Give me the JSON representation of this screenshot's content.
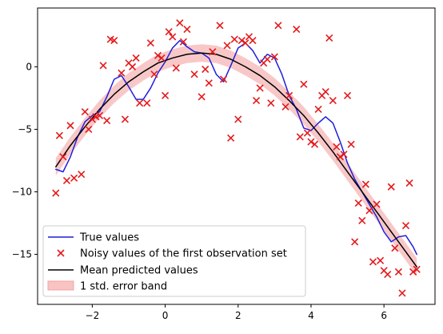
{
  "chart_data": {
    "type": "line",
    "title": "",
    "xlabel": "",
    "ylabel": "",
    "xlim": [
      -3.5,
      7.4
    ],
    "ylim": [
      -19,
      4.7
    ],
    "grid": false,
    "legend_position": "lower-left",
    "x_ticks": [
      -2,
      0,
      2,
      4,
      6
    ],
    "x_tick_labels": [
      "−2",
      "0",
      "2",
      "4",
      "6"
    ],
    "y_ticks": [
      0,
      -5,
      -10,
      -15
    ],
    "y_tick_labels": [
      "0",
      "−5",
      "−10",
      "−15"
    ],
    "legend": [
      {
        "label": "True values",
        "kind": "line",
        "color": "#1f1fdd"
      },
      {
        "label": "Noisy values of the first observation set",
        "kind": "marker",
        "color": "#e41a1c"
      },
      {
        "label": "Mean predicted values",
        "kind": "line",
        "color": "#000000"
      },
      {
        "label": "1 std. error band",
        "kind": "patch",
        "color": "#f4a3a3"
      }
    ],
    "series": [
      {
        "name": "True values",
        "type": "line",
        "color": "#1f1fdd",
        "x": [
          -3.0,
          -2.8,
          -2.6,
          -2.4,
          -2.2,
          -2.0,
          -1.8,
          -1.6,
          -1.4,
          -1.2,
          -1.0,
          -0.8,
          -0.6,
          -0.4,
          -0.2,
          0.0,
          0.2,
          0.4,
          0.6,
          0.8,
          1.0,
          1.2,
          1.4,
          1.6,
          1.8,
          2.0,
          2.2,
          2.4,
          2.6,
          2.8,
          3.0,
          3.2,
          3.4,
          3.6,
          3.8,
          4.0,
          4.2,
          4.4,
          4.6,
          4.8,
          5.0,
          5.2,
          5.4,
          5.6,
          5.8,
          6.0,
          6.2,
          6.4,
          6.6,
          6.8,
          6.9
        ],
        "y": [
          -8.2,
          -8.4,
          -7.2,
          -5.6,
          -4.4,
          -3.9,
          -3.6,
          -2.4,
          -1.0,
          -0.7,
          -1.6,
          -2.6,
          -2.6,
          -1.7,
          -0.5,
          0.4,
          1.5,
          2.1,
          1.6,
          1.2,
          1.1,
          0.7,
          -0.6,
          -1.2,
          0.1,
          1.5,
          1.9,
          1.3,
          0.3,
          1.0,
          0.7,
          -0.6,
          -2.3,
          -3.4,
          -4.9,
          -5.1,
          -4.5,
          -4.0,
          -4.5,
          -6.0,
          -7.7,
          -9.0,
          -10.0,
          -11.0,
          -12.0,
          -13.2,
          -14.0,
          -13.6,
          -13.5,
          -14.4,
          -15.0
        ]
      },
      {
        "name": "Mean predicted values",
        "type": "line",
        "color": "#000000",
        "x": [
          -3.0,
          -2.6,
          -2.2,
          -1.8,
          -1.4,
          -1.0,
          -0.6,
          -0.2,
          0.2,
          0.6,
          1.0,
          1.4,
          1.8,
          2.2,
          2.6,
          3.0,
          3.4,
          3.8,
          4.2,
          4.6,
          5.0,
          5.4,
          5.8,
          6.2,
          6.6,
          6.9
        ],
        "y": [
          -8.0,
          -6.3,
          -4.8,
          -3.4,
          -2.2,
          -1.2,
          -0.4,
          0.3,
          0.7,
          1.0,
          1.1,
          1.0,
          0.6,
          0.0,
          -0.7,
          -1.6,
          -2.7,
          -3.9,
          -5.3,
          -6.8,
          -8.4,
          -10.0,
          -11.6,
          -13.2,
          -14.8,
          -16.0
        ]
      },
      {
        "name": "1 std. error band",
        "type": "area",
        "color": "#f4a3a3",
        "x": [
          -3.0,
          -2.6,
          -2.2,
          -1.8,
          -1.4,
          -1.0,
          -0.6,
          -0.2,
          0.2,
          0.6,
          1.0,
          1.4,
          1.8,
          2.2,
          2.6,
          3.0,
          3.4,
          3.8,
          4.2,
          4.6,
          5.0,
          5.4,
          5.8,
          6.2,
          6.6,
          6.9
        ],
        "y_low": [
          -8.7,
          -7.0,
          -5.5,
          -4.1,
          -2.9,
          -1.9,
          -1.1,
          -0.4,
          0.0,
          0.3,
          0.4,
          0.3,
          -0.1,
          -0.7,
          -1.4,
          -2.3,
          -3.4,
          -4.6,
          -6.0,
          -7.5,
          -9.1,
          -10.7,
          -12.3,
          -13.9,
          -15.5,
          -16.7
        ],
        "y_high": [
          -7.3,
          -5.6,
          -4.1,
          -2.7,
          -1.5,
          -0.5,
          0.3,
          1.0,
          1.4,
          1.7,
          1.8,
          1.7,
          1.3,
          0.7,
          0.0,
          -0.9,
          -2.0,
          -3.2,
          -4.6,
          -6.1,
          -7.7,
          -9.3,
          -10.9,
          -12.5,
          -14.1,
          -15.3
        ]
      },
      {
        "name": "Noisy values of the first observation set",
        "type": "scatter",
        "color": "#e41a1c",
        "marker": "x",
        "x": [
          -3.0,
          -2.9,
          -2.8,
          -2.7,
          -2.6,
          -2.5,
          -2.3,
          -2.2,
          -2.1,
          -2.0,
          -1.9,
          -1.8,
          -1.7,
          -1.6,
          -1.5,
          -1.4,
          -1.2,
          -1.1,
          -1.0,
          -0.9,
          -0.8,
          -0.7,
          -0.5,
          -0.4,
          -0.3,
          -0.2,
          -0.1,
          0.0,
          0.1,
          0.2,
          0.3,
          0.4,
          0.5,
          0.6,
          0.8,
          1.0,
          1.1,
          1.2,
          1.3,
          1.5,
          1.6,
          1.7,
          1.8,
          1.9,
          2.0,
          2.1,
          2.2,
          2.3,
          2.4,
          2.5,
          2.6,
          2.7,
          2.8,
          2.9,
          3.0,
          3.1,
          3.3,
          3.4,
          3.6,
          3.7,
          3.8,
          3.9,
          4.0,
          4.1,
          4.2,
          4.3,
          4.4,
          4.5,
          4.6,
          4.7,
          4.8,
          4.9,
          5.0,
          5.1,
          5.2,
          5.3,
          5.4,
          5.5,
          5.6,
          5.7,
          5.8,
          5.9,
          6.0,
          6.1,
          6.2,
          6.3,
          6.4,
          6.5,
          6.6,
          6.7,
          6.8,
          6.9
        ],
        "y": [
          -10.1,
          -5.5,
          -7.2,
          -9.1,
          -4.7,
          -8.9,
          -8.6,
          -3.6,
          -5.0,
          -4.2,
          -4.0,
          -3.9,
          0.1,
          -4.3,
          2.2,
          2.1,
          -0.5,
          -4.2,
          0.3,
          0.0,
          0.7,
          -2.9,
          -2.9,
          1.9,
          -0.6,
          0.9,
          0.7,
          -2.3,
          2.8,
          2.4,
          -0.1,
          3.5,
          2.0,
          3.0,
          -0.6,
          -2.4,
          -0.2,
          -1.3,
          1.2,
          3.3,
          -1.0,
          1.7,
          -5.7,
          2.2,
          -4.2,
          2.1,
          1.9,
          2.4,
          2.1,
          -2.7,
          -1.7,
          0.3,
          0.6,
          -2.9,
          0.8,
          3.3,
          -3.2,
          -2.3,
          3.0,
          -5.6,
          -1.4,
          -5.3,
          -6.0,
          -6.2,
          -3.4,
          -2.3,
          -2.0,
          2.3,
          -2.7,
          -6.4,
          -7.2,
          -7.0,
          -2.3,
          -6.2,
          -14.0,
          -10.9,
          -12.3,
          -9.4,
          -11.5,
          -15.6,
          -11.0,
          -15.5,
          -16.3,
          -16.6,
          -9.6,
          -14.5,
          -16.4,
          -18.1,
          -12.7,
          -9.3,
          -16.4,
          -16.2
        ]
      }
    ]
  }
}
